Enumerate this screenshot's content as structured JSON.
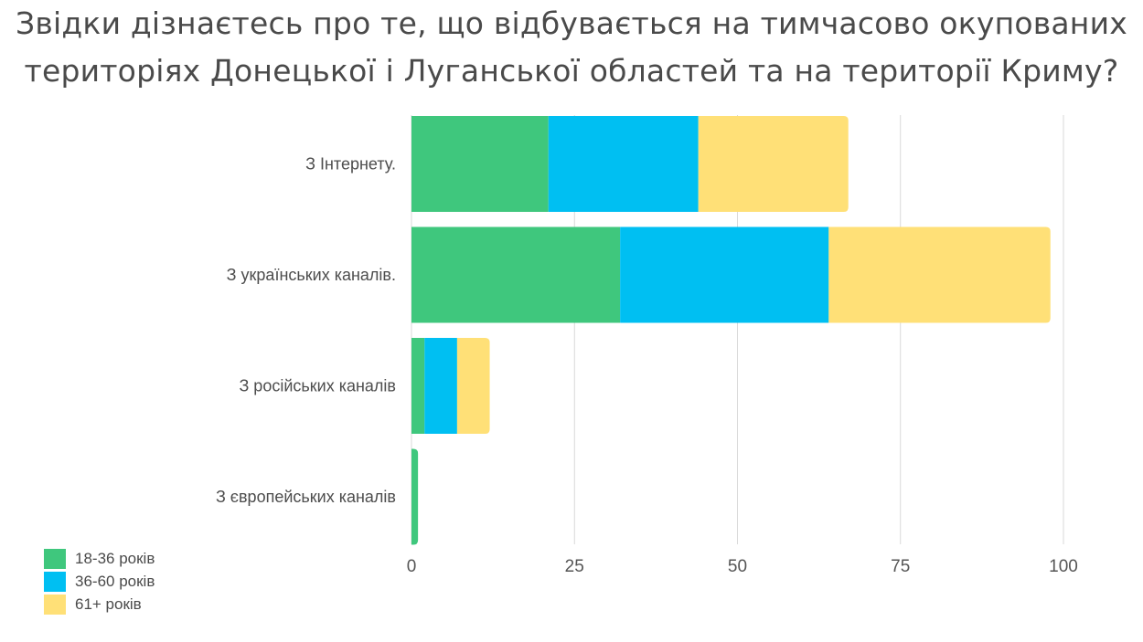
{
  "title": {
    "line1": "Звідки дізнаєтесь про те, що відбувається на тимчасово окупованих",
    "line2": "територіях Донецької і Луганської областей та на території Криму?"
  },
  "chart_data": {
    "type": "bar",
    "orientation": "horizontal",
    "stacked": true,
    "categories": [
      "З Інтернету.",
      "З українських каналів.",
      "З російських каналів",
      "З європейських каналів"
    ],
    "series": [
      {
        "name": "18-36 років",
        "color": "#3fc77d",
        "values": [
          21,
          32,
          2,
          1
        ]
      },
      {
        "name": "36-60 років",
        "color": "#00bff2",
        "values": [
          23,
          32,
          5,
          0
        ]
      },
      {
        "name": "61+ років",
        "color": "#ffe077",
        "values": [
          23,
          34,
          5,
          0
        ]
      }
    ],
    "xlim": [
      0,
      100
    ],
    "xticks": [
      0,
      25,
      50,
      75,
      100
    ],
    "grid": true,
    "legend_position": "bottom-left"
  }
}
